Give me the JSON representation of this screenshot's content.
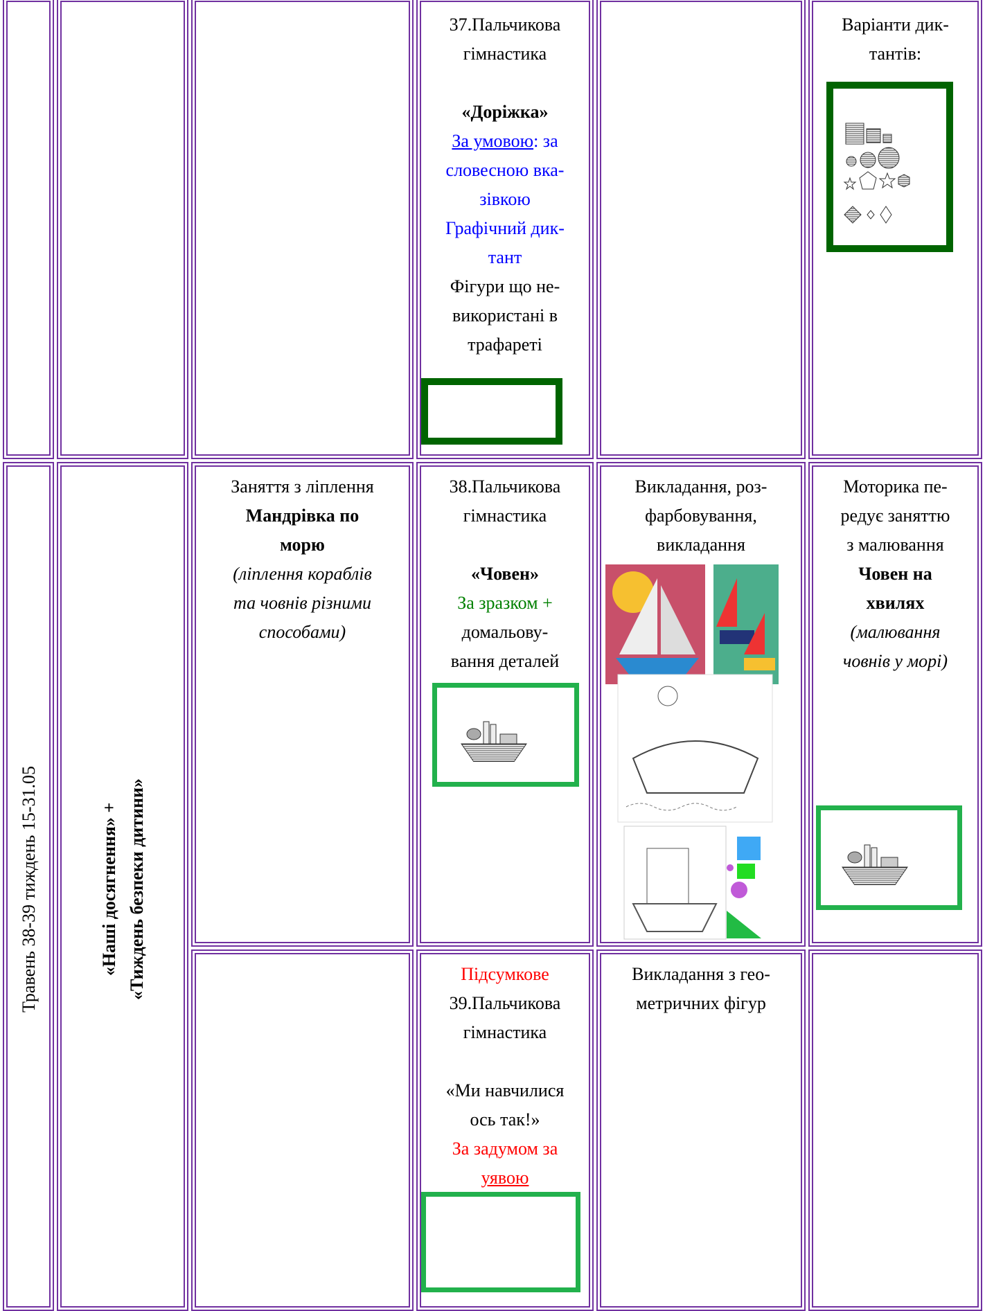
{
  "period": "Травень  38-39 тиждень  15-31.05",
  "theme": {
    "line1": "«Наші досягнення» +",
    "line2": "«Тиждень безпеки дитини»"
  },
  "rows": [
    {
      "gymnastics": {
        "lines": [
          "37.Пальчикова",
          "гімнастика"
        ],
        "name": "«Доріжка»",
        "condition_link": "За умовою",
        "condition_rest": ": за",
        "method": [
          "словесною вка-",
          "зівкою",
          "Графічний дик-",
          "тант"
        ],
        "note": [
          "Фігури що не-",
          "використані в",
          "трафареті"
        ]
      },
      "variants": [
        "Варіанти дик-",
        "тантів:"
      ]
    },
    {
      "modeling": {
        "intro": "Заняття з ліплення",
        "title": [
          "Мандрівка по",
          "морю"
        ],
        "desc": [
          "(ліплення кораблів",
          "та човнів різними",
          "способами)"
        ]
      },
      "gymnastics": {
        "lines": [
          "38.Пальчикова",
          "гімнастика"
        ],
        "name": "«Човен»",
        "method": "За зразком +",
        "note": [
          "домальову-",
          "вання деталей"
        ]
      },
      "activity": [
        "Викладання, роз-",
        "фарбовування,",
        "викладання"
      ],
      "motor": {
        "intro": [
          "Моторика пе-",
          "редує заняттю",
          "з малювання"
        ],
        "title": [
          "Човен на",
          "хвилях"
        ],
        "desc": [
          "(малювання",
          "човнів у морі)"
        ]
      }
    },
    {
      "gymnastics": {
        "status": "Підсумкове",
        "lines": [
          "39.Пальчикова",
          "гімнастика"
        ],
        "name": [
          "«Ми навчилися",
          "ось так!»"
        ],
        "method": "За задумом за",
        "method_link": "уявою"
      },
      "activity": [
        "Викладання з гео-",
        "метричних фігур"
      ]
    }
  ]
}
